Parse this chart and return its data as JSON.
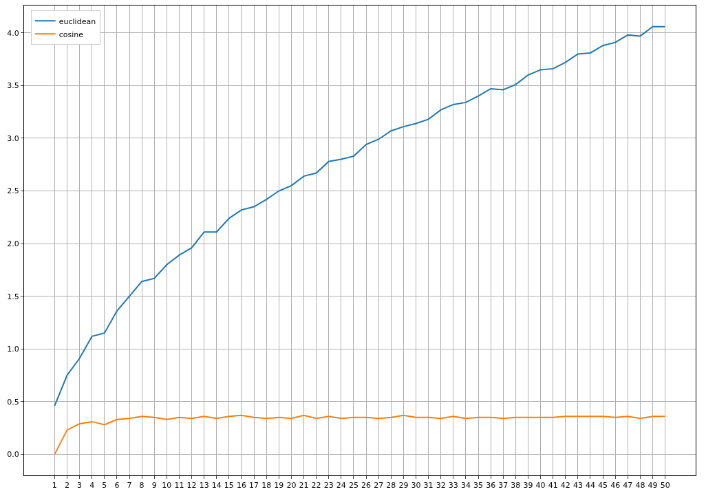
{
  "chart_data": {
    "type": "line",
    "x": [
      1,
      2,
      3,
      4,
      5,
      6,
      7,
      8,
      9,
      10,
      11,
      12,
      13,
      14,
      15,
      16,
      17,
      18,
      19,
      20,
      21,
      22,
      23,
      24,
      25,
      26,
      27,
      28,
      29,
      30,
      31,
      32,
      33,
      34,
      35,
      36,
      37,
      38,
      39,
      40,
      41,
      42,
      43,
      44,
      45,
      46,
      47,
      48,
      49,
      50
    ],
    "series": [
      {
        "name": "euclidean",
        "color": "#1f77b4",
        "values": [
          0.46,
          0.75,
          0.91,
          1.12,
          1.15,
          1.36,
          1.5,
          1.64,
          1.67,
          1.8,
          1.89,
          1.96,
          2.11,
          2.11,
          2.24,
          2.32,
          2.35,
          2.42,
          2.5,
          2.55,
          2.64,
          2.67,
          2.78,
          2.8,
          2.83,
          2.94,
          2.99,
          3.07,
          3.11,
          3.14,
          3.18,
          3.27,
          3.32,
          3.34,
          3.4,
          3.47,
          3.46,
          3.51,
          3.6,
          3.65,
          3.66,
          3.72,
          3.8,
          3.81,
          3.88,
          3.91,
          3.98,
          3.97,
          4.06,
          4.06
        ]
      },
      {
        "name": "cosine",
        "color": "#ff7f0e",
        "values": [
          0,
          0.23,
          0.29,
          0.31,
          0.28,
          0.33,
          0.34,
          0.36,
          0.35,
          0.33,
          0.35,
          0.34,
          0.36,
          0.34,
          0.36,
          0.37,
          0.35,
          0.34,
          0.35,
          0.34,
          0.37,
          0.34,
          0.36,
          0.34,
          0.35,
          0.35,
          0.34,
          0.35,
          0.37,
          0.35,
          0.35,
          0.34,
          0.36,
          0.34,
          0.35,
          0.35,
          0.34,
          0.35,
          0.35,
          0.35,
          0.35,
          0.36,
          0.36,
          0.36,
          0.36,
          0.35,
          0.36,
          0.34,
          0.36,
          0.36
        ]
      }
    ],
    "xlim": [
      -1.45,
      52.45
    ],
    "xticks": [
      1,
      2,
      3,
      4,
      5,
      6,
      7,
      8,
      9,
      10,
      11,
      12,
      13,
      14,
      15,
      16,
      17,
      18,
      19,
      20,
      21,
      22,
      23,
      24,
      25,
      26,
      27,
      28,
      29,
      30,
      31,
      32,
      33,
      34,
      35,
      36,
      37,
      38,
      39,
      40,
      41,
      42,
      43,
      44,
      45,
      46,
      47,
      48,
      49,
      50
    ],
    "ylim": [
      -0.2,
      4.26
    ],
    "yticks": [
      {
        "value": 0,
        "label": "0.0"
      },
      {
        "value": 0.5,
        "label": "0.5"
      },
      {
        "value": 1,
        "label": "1.0"
      },
      {
        "value": 1.5,
        "label": "1.5"
      },
      {
        "value": 2,
        "label": "2.0"
      },
      {
        "value": 2.5,
        "label": "2.5"
      },
      {
        "value": 3,
        "label": "3.0"
      },
      {
        "value": 3.5,
        "label": "3.5"
      },
      {
        "value": 4,
        "label": "4.0"
      }
    ],
    "grid": true,
    "legend": "top left",
    "marker": "none",
    "line_style": "solid"
  }
}
